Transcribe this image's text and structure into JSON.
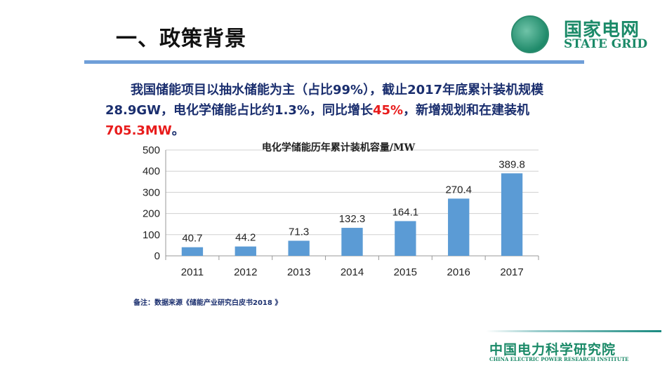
{
  "slide": {
    "title": "一、政策背景",
    "logo": {
      "cn": "国家电网",
      "en": "STATE GRID"
    },
    "paragraph": {
      "part1": "我国储能项目以抽水储能为主（占比99%），截止2017年底累计装机规模28.9GW，电化学储能占比约1.3%，同比增长",
      "highlight1": "45%",
      "part2": "，新增规划和在建装机",
      "highlight2": "705.3MW",
      "part3": "。"
    },
    "note": "备注：数据来源《储能产业研究白皮书2018 》",
    "footer": {
      "cn": "中国电力科学研究院",
      "en": "CHINA ELECTRIC POWER RESEARCH INSTITUTE"
    },
    "colors": {
      "accent_rule": "#6f9fd8",
      "text": "#1a2e6e",
      "highlight": "#e81c1c",
      "brand": "#1b8a68",
      "bar": "#5b9bd5"
    }
  },
  "chart_data": {
    "type": "bar",
    "title": "电化学储能历年累计装机容量/MW",
    "categories": [
      "2011",
      "2012",
      "2013",
      "2014",
      "2015",
      "2016",
      "2017"
    ],
    "values": [
      40.7,
      44.2,
      71.3,
      132.3,
      164.1,
      270.4,
      389.8
    ],
    "data_labels": [
      "40.7",
      "44.2",
      "71.3",
      "132.3",
      "164.1",
      "270.4",
      "389.8"
    ],
    "ylim": [
      0,
      500
    ],
    "yticks": [
      "0",
      "100",
      "200",
      "300",
      "400",
      "500"
    ],
    "grid": true,
    "legend": "none",
    "bar_color": "#5b9bd5"
  }
}
